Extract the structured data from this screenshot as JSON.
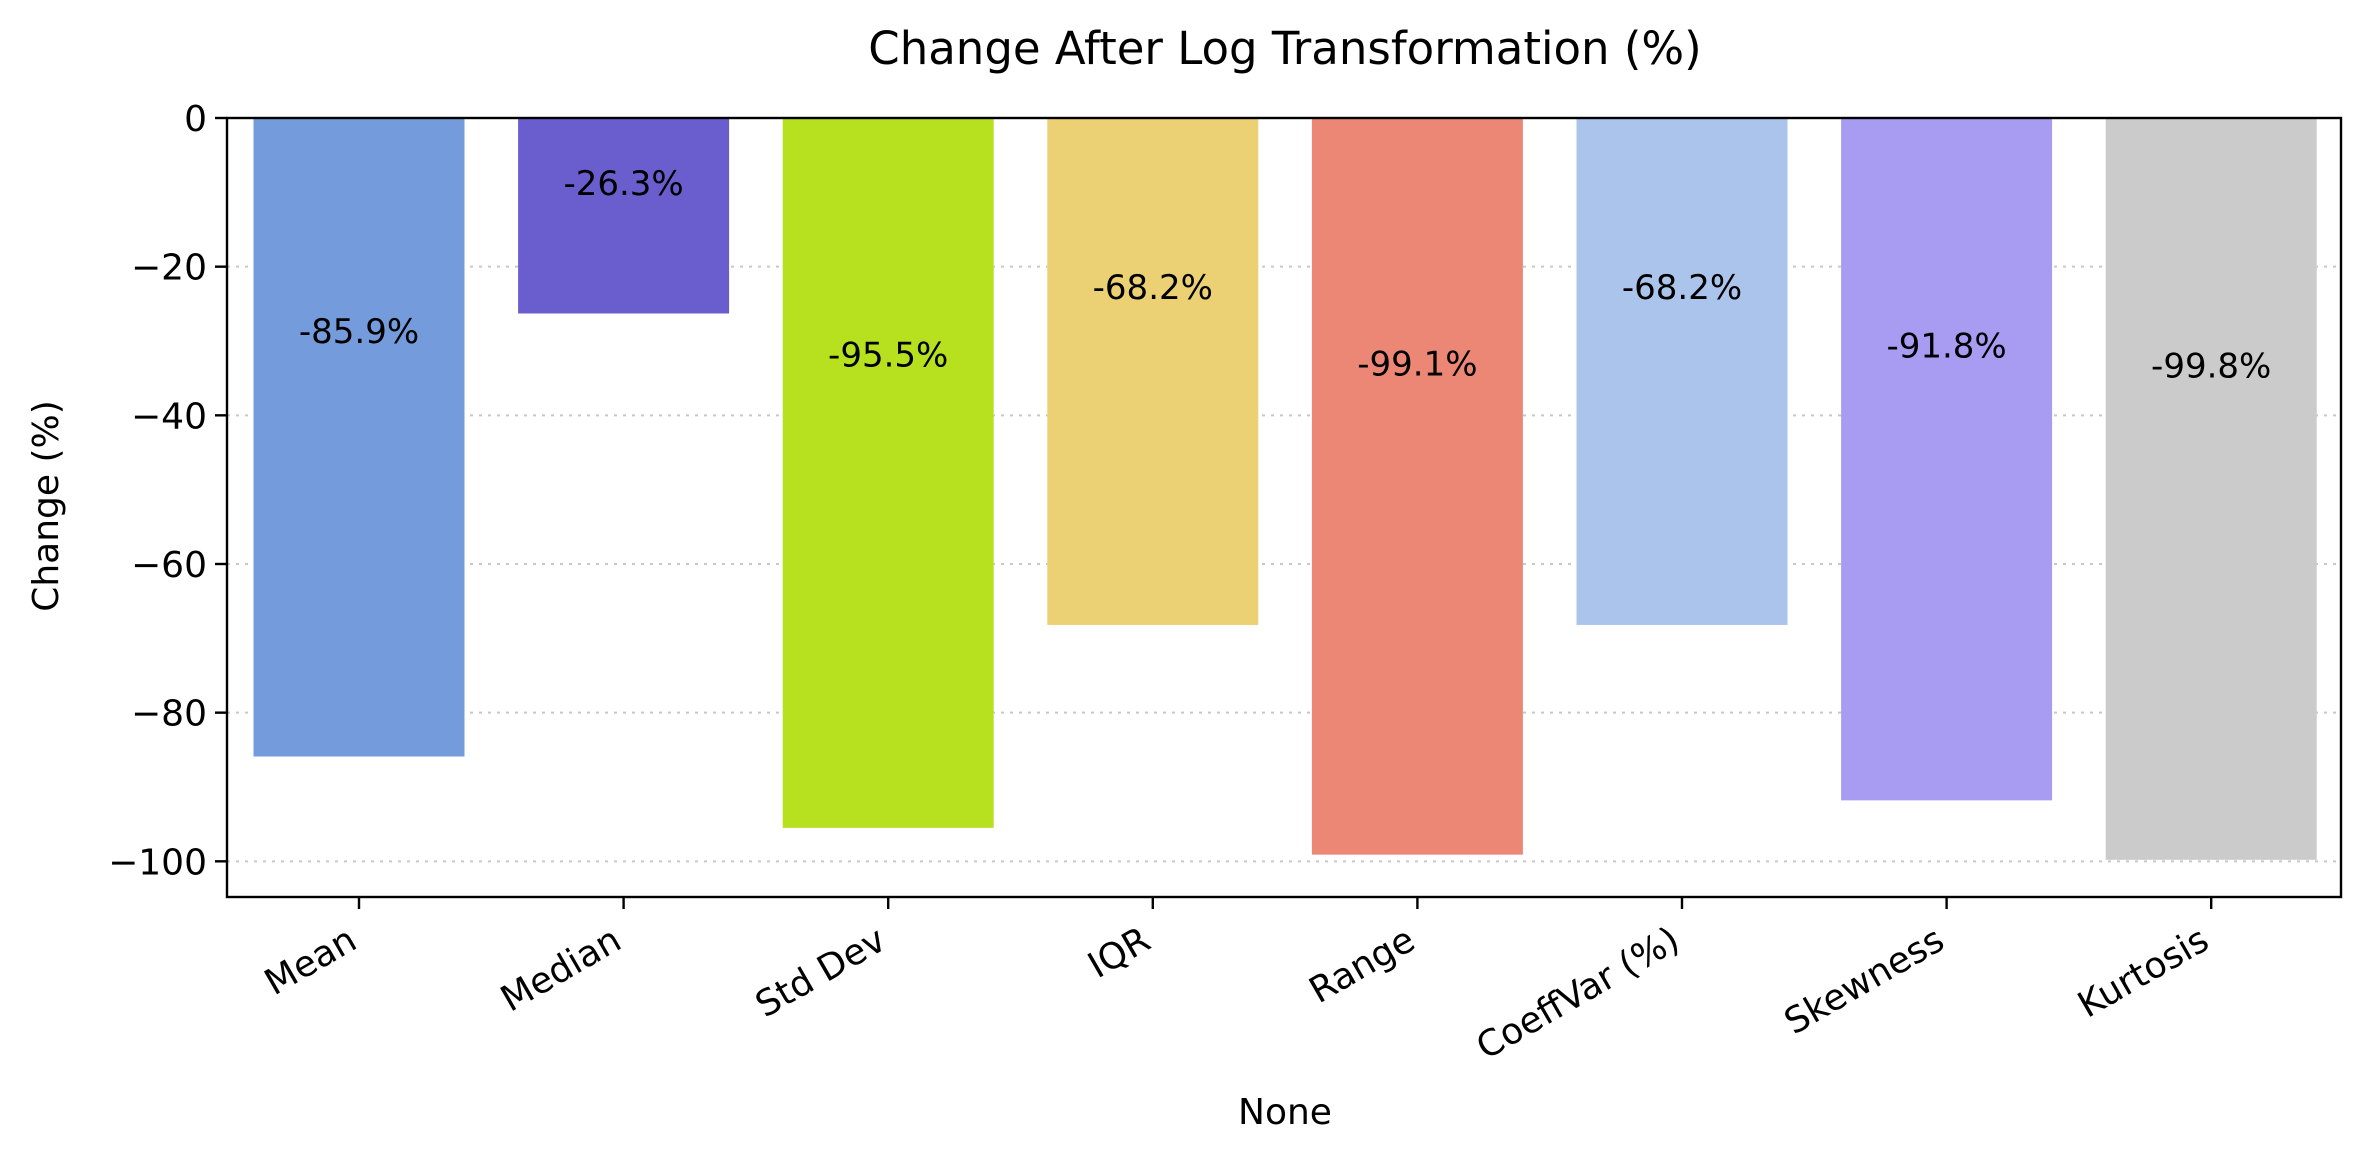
{
  "chart_data": {
    "type": "bar",
    "title": "Change After Log Transformation (%)",
    "xlabel": "None",
    "ylabel": "Change (%)",
    "categories": [
      "Mean",
      "Median",
      "Std Dev",
      "IQR",
      "Range",
      "CoeffVar (%)",
      "Skewness",
      "Kurtosis"
    ],
    "values": [
      -85.9,
      -26.3,
      -95.5,
      -68.2,
      -99.1,
      -68.2,
      -91.8,
      -99.8
    ],
    "value_labels": [
      "-85.9%",
      "-26.3%",
      "-95.5%",
      "-68.2%",
      "-99.1%",
      "-68.2%",
      "-91.8%",
      "-99.8%"
    ],
    "colors": [
      "#749bdc",
      "#6a5ecf",
      "#b7e01e",
      "#ebd173",
      "#ed8775",
      "#aac4ec",
      "#a89cf2",
      "#cbcbcb"
    ],
    "ylim": [
      -104.8,
      0
    ],
    "yticks": [
      0,
      -20,
      -40,
      -60,
      -80,
      -100
    ],
    "ytick_labels": [
      "0",
      "−20",
      "−40",
      "−60",
      "−80",
      "−100"
    ],
    "grid": "horizontal-dotted",
    "legend": "none"
  }
}
